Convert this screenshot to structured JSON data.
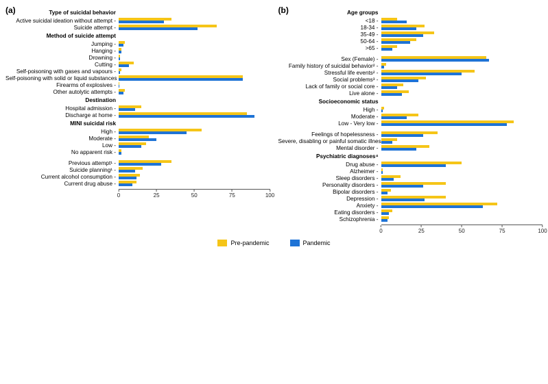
{
  "colors": {
    "pre": "#f5c518",
    "pan": "#1e73d6",
    "bg": "#ffffff",
    "axis": "#555555",
    "text": "#000000"
  },
  "xmax": 100,
  "xticks": [
    0,
    25,
    50,
    75,
    100
  ],
  "legend": {
    "pre_label": "Pre-pandemic",
    "pan_label": "Pandemic"
  },
  "panel_a": {
    "tag": "(a)",
    "groups": [
      {
        "heading": "Type of suicidal behavior",
        "rows": [
          {
            "label": "Active suicidal ideation without attempt",
            "pre": 35,
            "pan": 30
          },
          {
            "label": "Suicide attempt",
            "pre": 65,
            "pan": 52
          }
        ]
      },
      {
        "heading": "Method of suicide attempt",
        "rows": [
          {
            "label": "Jumping",
            "pre": 4,
            "pan": 3
          },
          {
            "label": "Hanging",
            "pre": 2,
            "pan": 2
          },
          {
            "label": "Drowning",
            "pre": 1,
            "pan": 1
          },
          {
            "label": "Cutting",
            "pre": 10,
            "pan": 7
          },
          {
            "label": "Self-poisoning with gases and vapours",
            "pre": 2,
            "pan": 1
          },
          {
            "label": "Self-poisoning with solid or liquid substances",
            "pre": 82,
            "pan": 82
          },
          {
            "label": "Firearms of explosives",
            "pre": 0.5,
            "pan": 0.5
          },
          {
            "label": "Other autolytic attempts",
            "pre": 4,
            "pan": 3
          }
        ]
      },
      {
        "heading": "Destination",
        "rows": [
          {
            "label": "Hospital admission",
            "pre": 15,
            "pan": 11
          },
          {
            "label": "Discharge at home",
            "pre": 85,
            "pan": 90
          }
        ]
      },
      {
        "heading": "MINI suicidal risk",
        "rows": [
          {
            "label": "High",
            "pre": 55,
            "pan": 45
          },
          {
            "label": "Moderate",
            "pre": 20,
            "pan": 25
          },
          {
            "label": "Low",
            "pre": 18,
            "pan": 15
          },
          {
            "label": "No apparent risk",
            "pre": 2,
            "pan": 2
          }
        ]
      },
      {
        "heading": "",
        "rows": [
          {
            "label": "Previous attempt¹",
            "pre": 35,
            "pan": 28
          },
          {
            "label": "Suicide planning¹",
            "pre": 16,
            "pan": 11
          },
          {
            "label": "Current alcohol consumption",
            "pre": 14,
            "pan": 12
          },
          {
            "label": "Current drug abuse",
            "pre": 12,
            "pan": 9
          }
        ]
      }
    ]
  },
  "panel_b": {
    "tag": "(b)",
    "groups": [
      {
        "heading": "Age groups",
        "rows": [
          {
            "label": "<18",
            "pre": 10,
            "pan": 16
          },
          {
            "label": "18-34",
            "pre": 27,
            "pan": 22
          },
          {
            "label": "35-49",
            "pre": 33,
            "pan": 26
          },
          {
            "label": "50-64",
            "pre": 22,
            "pan": 18
          },
          {
            "label": ">65",
            "pre": 10,
            "pan": 7
          }
        ]
      },
      {
        "heading": "",
        "rows": [
          {
            "label": "Sex (Female)",
            "pre": 65,
            "pan": 67
          },
          {
            "label": "Family history of suicidal behavior²",
            "pre": 3,
            "pan": 2
          },
          {
            "label": "Stressful life events²",
            "pre": 58,
            "pan": 50
          },
          {
            "label": "Social problems³",
            "pre": 28,
            "pan": 23
          },
          {
            "label": "Lack of family or social core",
            "pre": 14,
            "pan": 10
          },
          {
            "label": "Live alone",
            "pre": 17,
            "pan": 13
          }
        ]
      },
      {
        "heading": "Socioeconomic status",
        "rows": [
          {
            "label": "High",
            "pre": 2,
            "pan": 1
          },
          {
            "label": "Moderate",
            "pre": 23,
            "pan": 16
          },
          {
            "label": "Low - Very low",
            "pre": 82,
            "pan": 78
          }
        ]
      },
      {
        "heading": "",
        "rows": [
          {
            "label": "Feelings of hopelessness",
            "pre": 35,
            "pan": 26
          },
          {
            "label": "Severe, disabling or painful somatic illness",
            "pre": 10,
            "pan": 7
          },
          {
            "label": "Mental disorder",
            "pre": 30,
            "pan": 22
          }
        ]
      },
      {
        "heading": "Psychiatric diagnoses⁴",
        "rows": [
          {
            "label": "Drug abuse",
            "pre": 50,
            "pan": 40
          },
          {
            "label": "Alzheimer",
            "pre": 1,
            "pan": 1
          },
          {
            "label": "Sleep disorders",
            "pre": 12,
            "pan": 8
          },
          {
            "label": "Personality disorders",
            "pre": 40,
            "pan": 26
          },
          {
            "label": "Bipolar disorders",
            "pre": 6,
            "pan": 4
          },
          {
            "label": "Depression",
            "pre": 40,
            "pan": 27
          },
          {
            "label": "Anxiety",
            "pre": 72,
            "pan": 63
          },
          {
            "label": "Eating disorders",
            "pre": 7,
            "pan": 5
          },
          {
            "label": "Schizophrenia",
            "pre": 5,
            "pan": 4
          }
        ]
      }
    ]
  }
}
